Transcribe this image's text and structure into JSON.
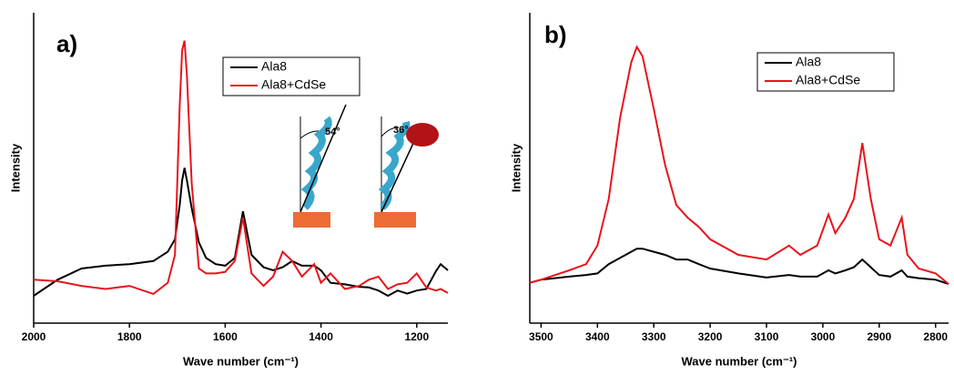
{
  "chart_data": [
    {
      "type": "line",
      "label": "a)",
      "x_label": "Wave number (cm⁻¹)",
      "y_label": "Intensity",
      "x": [
        2000,
        1950,
        1900,
        1850,
        1800,
        1750,
        1720,
        1705,
        1695,
        1690,
        1685,
        1680,
        1670,
        1655,
        1640,
        1620,
        1600,
        1580,
        1563,
        1545,
        1520,
        1500,
        1480,
        1460,
        1440,
        1414,
        1400,
        1380,
        1350,
        1320,
        1300,
        1280,
        1260,
        1240,
        1220,
        1200,
        1180,
        1160,
        1150,
        1135
      ],
      "series": [
        {
          "name": "Ala8",
          "color": "#000000",
          "values": [
            8.8,
            14,
            17.6,
            18.5,
            19,
            20,
            23,
            27,
            38,
            46,
            50,
            46,
            37,
            26,
            21,
            19,
            18.5,
            21,
            36,
            22,
            18,
            17,
            18,
            20,
            18.5,
            18.5,
            17,
            13,
            12.5,
            11.7,
            11.5,
            10.5,
            8.8,
            10.5,
            9.5,
            10.5,
            11,
            16.7,
            19,
            17
          ]
        },
        {
          "name": "Ala8+CdSe",
          "color": "#e8141c",
          "values": [
            14,
            13.5,
            12,
            11,
            12,
            9.4,
            13,
            22,
            70,
            88,
            91,
            80,
            45,
            17.6,
            16,
            16,
            16.5,
            20,
            34,
            16,
            12,
            15,
            23,
            20,
            15,
            19,
            13,
            16,
            11,
            12,
            14,
            15,
            11,
            12.5,
            13,
            16,
            11.5,
            10.5,
            11,
            9.7
          ]
        }
      ],
      "xlim": [
        2000,
        1135
      ],
      "xticks": [
        2000,
        1800,
        1600,
        1400,
        1200
      ],
      "ylim": [
        0,
        100
      ],
      "annotations": [
        "54°",
        "36°"
      ]
    },
    {
      "type": "line",
      "label": "b)",
      "x_label": "Wave number (cm⁻¹)",
      "y_label": "Intensity",
      "x": [
        3520,
        3500,
        3450,
        3420,
        3400,
        3380,
        3360,
        3340,
        3330,
        3320,
        3300,
        3280,
        3260,
        3240,
        3220,
        3200,
        3150,
        3100,
        3060,
        3040,
        3010,
        2990,
        2978,
        2960,
        2945,
        2930,
        2915,
        2900,
        2880,
        2860,
        2850,
        2830,
        2800,
        2777
      ],
      "series": [
        {
          "name": "Ala8",
          "color": "#000000",
          "values": [
            13,
            14,
            15,
            15.5,
            16,
            19,
            21,
            23,
            24,
            24,
            23,
            22,
            20.5,
            20.5,
            19,
            17.6,
            16,
            14.7,
            15.5,
            15,
            15,
            17,
            16,
            17,
            18,
            20.5,
            18,
            15.5,
            15,
            17,
            15,
            14.5,
            14,
            12.6
          ]
        },
        {
          "name": "Ala8+CdSe",
          "color": "#e8141c",
          "values": [
            13,
            14,
            17,
            19,
            25,
            40,
            66,
            84,
            89,
            86,
            69,
            51,
            38,
            34,
            31,
            27,
            22,
            20.5,
            25,
            22,
            25,
            35,
            29,
            34,
            40,
            58,
            40,
            27,
            25,
            34,
            22,
            17.6,
            16,
            12.6
          ]
        }
      ],
      "xlim": [
        3520,
        2777
      ],
      "xticks": [
        3500,
        3400,
        3300,
        3200,
        3100,
        3000,
        2900,
        2800
      ],
      "ylim": [
        0,
        100
      ]
    }
  ]
}
